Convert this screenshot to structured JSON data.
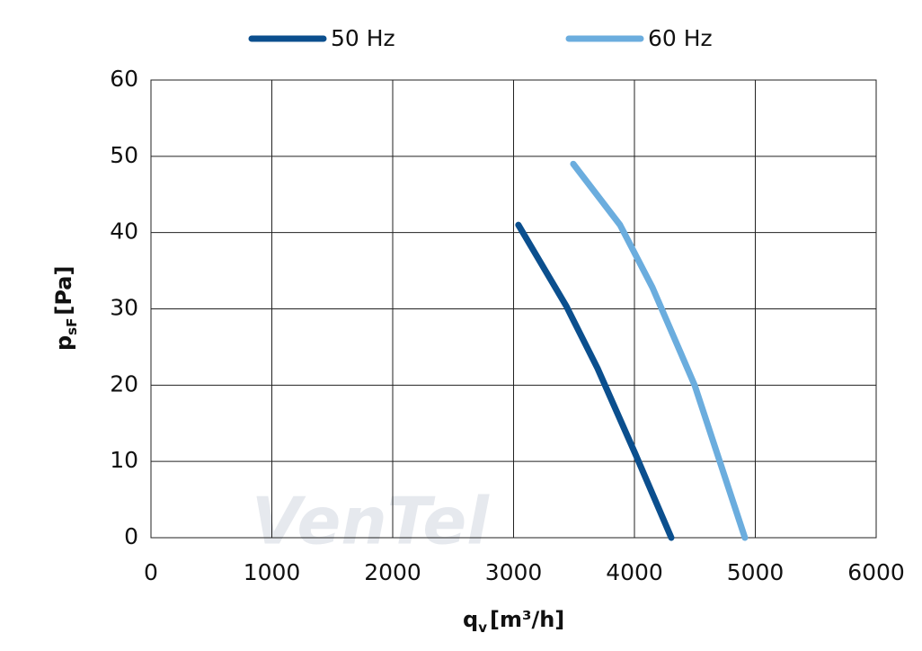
{
  "chart_data": {
    "type": "line",
    "xlabel": {
      "symbol": "q",
      "subscript": "v",
      "unit": "[m³/h]"
    },
    "ylabel": {
      "symbol": "p",
      "subscript": "sF",
      "unit": "[Pa]"
    },
    "watermark": "VenTel",
    "series": [
      {
        "name": "50 Hz",
        "color": "#0b4f8e",
        "x": [
          3040,
          3435,
          3695,
          4007,
          4305
        ],
        "values": [
          41,
          30.4,
          22.2,
          11,
          0
        ]
      },
      {
        "name": "60 Hz",
        "color": "#6badde",
        "x": [
          3494,
          3881,
          4149,
          4498,
          4914
        ],
        "values": [
          49,
          41,
          32.8,
          20,
          0
        ]
      }
    ],
    "xlim": [
      0,
      6000
    ],
    "xticks": [
      0,
      1000,
      2000,
      3000,
      4000,
      5000,
      6000
    ],
    "ylim": [
      0,
      60
    ],
    "yticks": [
      0,
      10,
      20,
      30,
      40,
      50,
      60
    ],
    "grid": true,
    "legend": "top"
  }
}
